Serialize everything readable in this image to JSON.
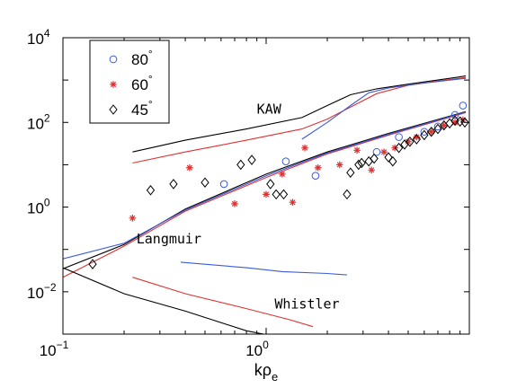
{
  "chart_data": {
    "type": "scatter",
    "xscale": "log",
    "yscale": "log",
    "xlim": [
      0.1,
      10
    ],
    "ylim": [
      0.001,
      10000
    ],
    "xlabel": "kρe",
    "ylabel": "",
    "title": "",
    "x_ticks": [
      {
        "value": 0.1,
        "base": "10",
        "exp": "−1"
      },
      {
        "value": 1,
        "base": "10",
        "exp": "0"
      }
    ],
    "y_ticks": [
      {
        "value": 0.01,
        "base": "10",
        "exp": "−2"
      },
      {
        "value": 1,
        "base": "10",
        "exp": "0"
      },
      {
        "value": 100,
        "base": "10",
        "exp": "2"
      },
      {
        "value": 10000,
        "base": "10",
        "exp": "4"
      }
    ],
    "grid": false,
    "legend_position": "top-left",
    "colors": {
      "blue": "#3b5bdb",
      "red": "#e03131",
      "black": "#000000"
    },
    "series": [
      {
        "name": "80°",
        "marker": "circle",
        "color": "#3b5bdb",
        "points": [
          [
            0.62,
            3.5
          ],
          [
            1.25,
            12
          ],
          [
            1.75,
            5.5
          ],
          [
            3.5,
            20
          ],
          [
            4.5,
            45
          ],
          [
            6.0,
            60
          ],
          [
            7.0,
            80
          ],
          [
            8.5,
            150
          ],
          [
            9.3,
            250
          ]
        ]
      },
      {
        "name": "60°",
        "marker": "star",
        "color": "#e03131",
        "points": [
          [
            0.22,
            0.55
          ],
          [
            0.42,
            8.5
          ],
          [
            0.7,
            1.2
          ],
          [
            1.0,
            2.0
          ],
          [
            1.2,
            6.0
          ],
          [
            1.35,
            1.3
          ],
          [
            1.55,
            25
          ],
          [
            1.8,
            8.5
          ],
          [
            2.3,
            10
          ],
          [
            2.8,
            22
          ],
          [
            3.3,
            7.5
          ],
          [
            3.8,
            20
          ],
          [
            4.3,
            25
          ],
          [
            5.0,
            35
          ],
          [
            5.5,
            45
          ],
          [
            6.5,
            60
          ],
          [
            7.5,
            85
          ],
          [
            8.5,
            100
          ],
          [
            9.3,
            115
          ]
        ]
      },
      {
        "name": "45°",
        "marker": "diamond",
        "color": "#000000",
        "points": [
          [
            0.14,
            0.045
          ],
          [
            0.27,
            2.5
          ],
          [
            0.35,
            3.5
          ],
          [
            0.5,
            3.8
          ],
          [
            0.75,
            10
          ],
          [
            0.85,
            13
          ],
          [
            1.05,
            3.5
          ],
          [
            1.12,
            2.0
          ],
          [
            1.22,
            2.0
          ],
          [
            2.5,
            2.0
          ],
          [
            2.6,
            6.5
          ],
          [
            2.85,
            10
          ],
          [
            2.95,
            11
          ],
          [
            3.2,
            12
          ],
          [
            3.4,
            14
          ],
          [
            4.0,
            15
          ],
          [
            4.2,
            12
          ],
          [
            4.5,
            25
          ],
          [
            4.8,
            30
          ],
          [
            5.1,
            35
          ],
          [
            5.5,
            40
          ],
          [
            6.0,
            50
          ],
          [
            6.5,
            60
          ],
          [
            7.0,
            70
          ],
          [
            7.5,
            85
          ],
          [
            8.0,
            95
          ],
          [
            8.5,
            110
          ],
          [
            9.0,
            105
          ],
          [
            9.5,
            100
          ]
        ]
      }
    ],
    "curves": [
      {
        "group": "KAW",
        "color": "#000000",
        "points": [
          [
            0.22,
            20
          ],
          [
            0.4,
            38
          ],
          [
            0.8,
            70
          ],
          [
            1.5,
            130
          ],
          [
            2.0,
            250
          ],
          [
            2.6,
            450
          ],
          [
            3.5,
            620
          ],
          [
            5.0,
            800
          ],
          [
            7.0,
            1000
          ],
          [
            9.6,
            1250
          ]
        ]
      },
      {
        "group": "KAW",
        "color": "#e03131",
        "points": [
          [
            0.22,
            11
          ],
          [
            0.4,
            20
          ],
          [
            0.8,
            38
          ],
          [
            1.5,
            70
          ],
          [
            2.0,
            120
          ],
          [
            2.6,
            230
          ],
          [
            3.5,
            480
          ],
          [
            5.0,
            750
          ],
          [
            7.0,
            950
          ],
          [
            9.6,
            1150
          ]
        ]
      },
      {
        "group": "KAW",
        "color": "#3b5bdb",
        "points": [
          [
            1.5,
            40
          ],
          [
            2.0,
            100
          ],
          [
            2.6,
            250
          ],
          [
            3.2,
            500
          ],
          [
            4.0,
            650
          ],
          [
            6.0,
            850
          ],
          [
            9.6,
            1100
          ]
        ]
      },
      {
        "group": "Langmuir",
        "color": "#000000",
        "points": [
          [
            0.1,
            0.035
          ],
          [
            0.2,
            0.13
          ],
          [
            0.4,
            0.9
          ],
          [
            1.0,
            6.0
          ],
          [
            2.0,
            20
          ],
          [
            4.0,
            55
          ],
          [
            9.6,
            180
          ]
        ]
      },
      {
        "group": "Langmuir",
        "color": "#e03131",
        "points": [
          [
            0.1,
            0.022
          ],
          [
            0.2,
            0.12
          ],
          [
            0.4,
            0.8
          ],
          [
            1.0,
            5.0
          ],
          [
            2.0,
            18
          ],
          [
            4.0,
            50
          ],
          [
            9.6,
            170
          ]
        ]
      },
      {
        "group": "Langmuir",
        "color": "#3b5bdb",
        "points": [
          [
            0.1,
            0.06
          ],
          [
            0.2,
            0.14
          ],
          [
            0.4,
            0.85
          ],
          [
            1.0,
            5.5
          ],
          [
            2.0,
            19
          ],
          [
            4.0,
            52
          ],
          [
            9.6,
            175
          ]
        ]
      },
      {
        "group": "Whistler",
        "color": "#3b5bdb",
        "points": [
          [
            0.38,
            0.05
          ],
          [
            0.8,
            0.037
          ],
          [
            1.2,
            0.03
          ],
          [
            2.0,
            0.027
          ],
          [
            2.5,
            0.025
          ]
        ]
      },
      {
        "group": "Whistler",
        "color": "#e03131",
        "points": [
          [
            0.22,
            0.022
          ],
          [
            0.4,
            0.009
          ],
          [
            0.8,
            0.004
          ],
          [
            1.3,
            0.0022
          ],
          [
            1.7,
            0.0015
          ]
        ]
      },
      {
        "group": "Whistler",
        "color": "#000000",
        "points": [
          [
            0.1,
            0.037
          ],
          [
            0.2,
            0.009
          ],
          [
            0.4,
            0.0035
          ],
          [
            0.8,
            0.0012
          ],
          [
            0.97,
            0.001
          ]
        ]
      }
    ],
    "annotations": [
      {
        "text": "KAW",
        "at": [
          0.9,
          160
        ]
      },
      {
        "text": "Langmuir",
        "at": [
          0.23,
          0.14
        ]
      },
      {
        "text": "Whistler",
        "at": [
          1.1,
          0.004
        ]
      }
    ]
  }
}
